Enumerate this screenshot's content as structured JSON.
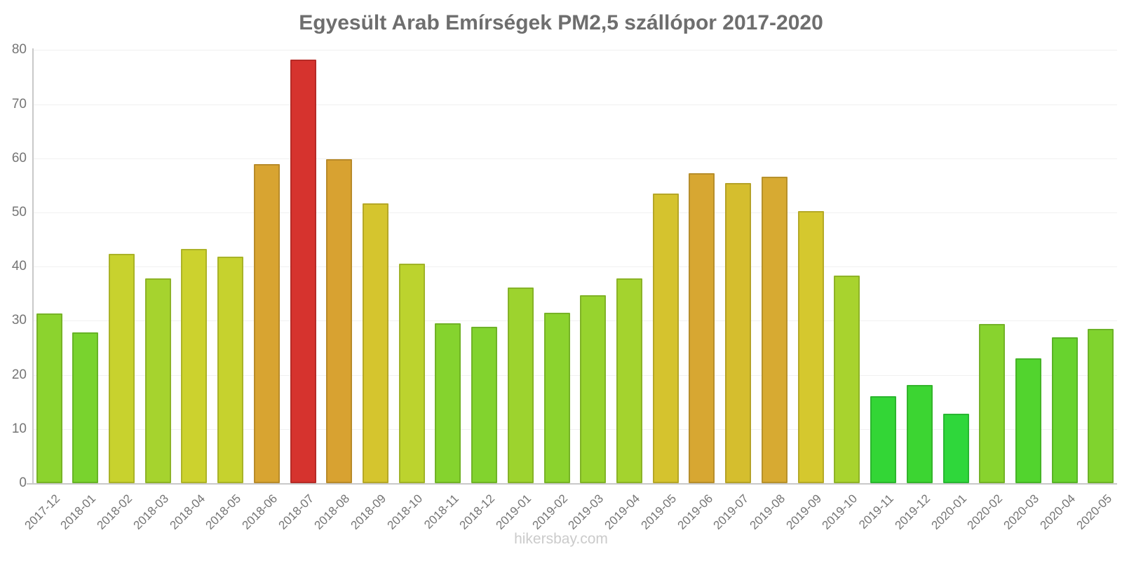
{
  "page": {
    "background": "#ffffff"
  },
  "header": {
    "title": "Egyesült Arab Emírségek PM2,5 szállópor 2017-2020",
    "title_color": "#6e6e6e"
  },
  "footer": {
    "text": "hikersbay.com",
    "color": "#cbcbcb"
  },
  "chart_data": {
    "type": "bar",
    "title": "Egyesült Arab Emírségek PM2,5 szállópor 2017-2020",
    "xlabel": "",
    "ylabel": "",
    "ylim": [
      0,
      80
    ],
    "yticks": [
      0,
      10,
      20,
      30,
      40,
      50,
      60,
      70,
      80
    ],
    "grid": "horizontal",
    "legend_position": "none",
    "categories": [
      "2017-12",
      "2018-01",
      "2018-02",
      "2018-03",
      "2018-04",
      "2018-05",
      "2018-06",
      "2018-07",
      "2018-08",
      "2018-09",
      "2018-10",
      "2018-11",
      "2018-12",
      "2019-01",
      "2019-02",
      "2019-03",
      "2019-04",
      "2019-05",
      "2019-06",
      "2019-07",
      "2019-08",
      "2019-09",
      "2019-10",
      "2019-11",
      "2019-12",
      "2020-01",
      "2020-02",
      "2020-03",
      "2020-04",
      "2020-05"
    ],
    "values": [
      31.4,
      27.9,
      42.3,
      37.8,
      43.3,
      41.9,
      59.0,
      78.3,
      59.9,
      51.7,
      40.5,
      29.5,
      28.9,
      36.2,
      31.5,
      34.7,
      37.8,
      53.5,
      57.3,
      55.5,
      56.6,
      50.2,
      38.3,
      16.0,
      18.1,
      12.8,
      29.4,
      23.1,
      26.9,
      28.5
    ],
    "bar_colors": [
      "#8CD32E",
      "#79D32E",
      "#C8D22E",
      "#A6D32E",
      "#CCD22E",
      "#C6D22E",
      "#D8A431",
      "#D6332E",
      "#D8A231",
      "#D5C52E",
      "#BCD32E",
      "#85D32E",
      "#82D32E",
      "#9DD32E",
      "#8CD32E",
      "#97D32E",
      "#A4D32E",
      "#D5C32E",
      "#D7A732",
      "#D5BE2E",
      "#D7AA32",
      "#D5C82E",
      "#A8D32E",
      "#33D636",
      "#3CD532",
      "#2FD73B",
      "#88D32E",
      "#52D42E",
      "#68D32E",
      "#80D32E"
    ],
    "axis_color": "#c9c9c9",
    "grid_color": "#f0f0f0",
    "tick_label_color": "#757575"
  }
}
